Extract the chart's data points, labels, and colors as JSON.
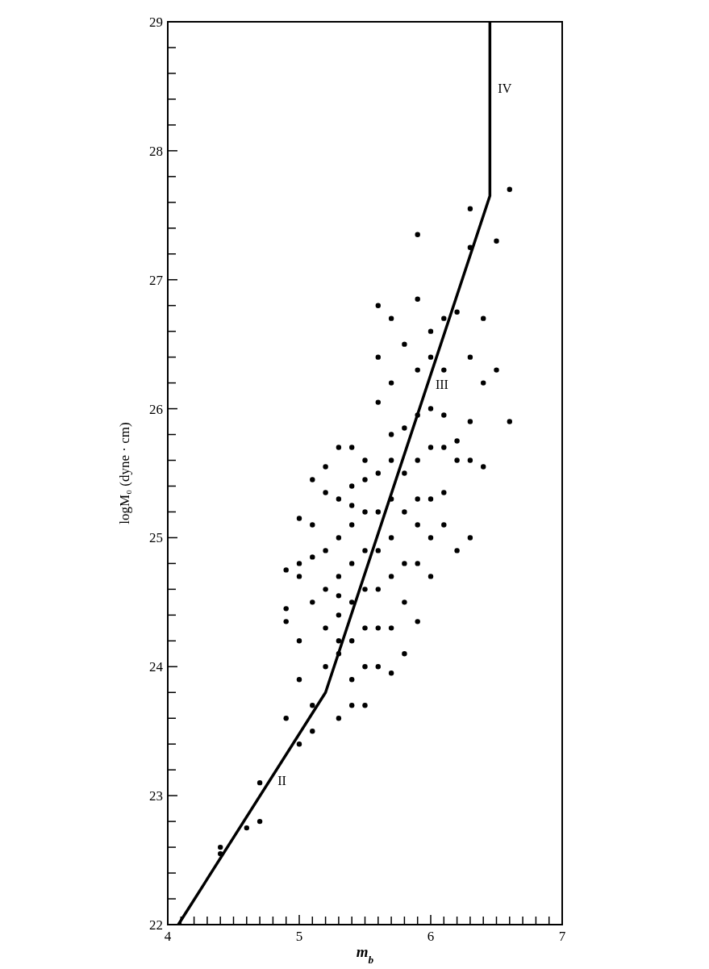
{
  "chart_data": {
    "type": "scatter",
    "xlabel": "m$_{b}$",
    "ylabel": "logM₀ (dyne · cm)",
    "xlim": [
      4,
      7
    ],
    "ylim": [
      22,
      29
    ],
    "xticks": [
      4,
      {
        "value": 4.1,
        "label": null
      },
      {
        "value": 4.2,
        "label": null
      },
      {
        "value": 4.3,
        "label": null
      },
      {
        "value": 4.4,
        "label": null
      },
      {
        "value": 4.5,
        "label": null
      },
      {
        "value": 4.6,
        "label": null
      },
      {
        "value": 4.7,
        "label": null
      },
      {
        "value": 4.8,
        "label": null
      },
      {
        "value": 4.9,
        "label": null
      },
      5,
      {
        "value": 5.1,
        "label": null
      },
      {
        "value": 5.2,
        "label": null
      },
      {
        "value": 5.3,
        "label": null
      },
      {
        "value": 5.4,
        "label": null
      },
      {
        "value": 5.5,
        "label": null
      },
      {
        "value": 5.6,
        "label": null
      },
      {
        "value": 5.7,
        "label": null
      },
      {
        "value": 5.8,
        "label": null
      },
      {
        "value": 5.9,
        "label": null
      },
      6,
      {
        "value": 6.1,
        "label": null
      },
      {
        "value": 6.2,
        "label": null
      },
      {
        "value": 6.3,
        "label": null
      },
      {
        "value": 6.4,
        "label": null
      },
      {
        "value": 6.5,
        "label": null
      },
      {
        "value": 6.6,
        "label": null
      },
      {
        "value": 6.7,
        "label": null
      },
      {
        "value": 6.8,
        "label": null
      },
      {
        "value": 6.9,
        "label": null
      },
      7
    ],
    "yticks": [
      22,
      {
        "value": 22.2,
        "label": null
      },
      {
        "value": 22.4,
        "label": null
      },
      {
        "value": 22.6,
        "label": null
      },
      {
        "value": 22.8,
        "label": null
      },
      23,
      {
        "value": 23.2,
        "label": null
      },
      {
        "value": 23.4,
        "label": null
      },
      {
        "value": 23.6,
        "label": null
      },
      {
        "value": 23.8,
        "label": null
      },
      24,
      {
        "value": 24.2,
        "label": null
      },
      {
        "value": 24.4,
        "label": null
      },
      {
        "value": 24.6,
        "label": null
      },
      {
        "value": 24.8,
        "label": null
      },
      25,
      {
        "value": 25.2,
        "label": null
      },
      {
        "value": 25.4,
        "label": null
      },
      {
        "value": 25.6,
        "label": null
      },
      {
        "value": 25.8,
        "label": null
      },
      26,
      {
        "value": 26.2,
        "label": null
      },
      {
        "value": 26.4,
        "label": null
      },
      {
        "value": 26.6,
        "label": null
      },
      {
        "value": 26.8,
        "label": null
      },
      27,
      {
        "value": 27.2,
        "label": null
      },
      {
        "value": 27.4,
        "label": null
      },
      {
        "value": 27.6,
        "label": null
      },
      {
        "value": 27.8,
        "label": null
      },
      28,
      {
        "value": 28.2,
        "label": null
      },
      {
        "value": 28.4,
        "label": null
      },
      {
        "value": 28.6,
        "label": null
      },
      {
        "value": 28.8,
        "label": null
      },
      29
    ],
    "grid": false,
    "marker": "circle",
    "annotations": [
      "II",
      "III",
      "IV"
    ],
    "series": [
      {
        "color": "#000000",
        "x": [
          4.4,
          4.4,
          4.6,
          4.7,
          4.7,
          4.9,
          5.0,
          5.0,
          5.1,
          5.1,
          4.9,
          4.9,
          4.9,
          5.0,
          5.0,
          5.0,
          5.0,
          5.1,
          5.1,
          5.1,
          5.1,
          5.2,
          5.2,
          5.2,
          5.2,
          5.2,
          5.2,
          5.3,
          5.3,
          5.3,
          5.3,
          5.3,
          5.3,
          5.3,
          5.3,
          5.3,
          5.4,
          5.4,
          5.4,
          5.4,
          5.4,
          5.4,
          5.4,
          5.4,
          5.4,
          5.5,
          5.5,
          5.5,
          5.5,
          5.5,
          5.5,
          5.5,
          5.5,
          5.6,
          5.6,
          5.6,
          5.6,
          5.6,
          5.6,
          5.6,
          5.6,
          5.6,
          5.7,
          5.7,
          5.7,
          5.7,
          5.7,
          5.7,
          5.7,
          5.7,
          5.7,
          5.8,
          5.8,
          5.8,
          5.8,
          5.8,
          5.8,
          5.8,
          5.9,
          5.9,
          5.9,
          5.9,
          5.9,
          5.9,
          5.9,
          5.9,
          5.9,
          6.0,
          6.0,
          6.0,
          6.0,
          6.0,
          6.0,
          6.0,
          6.1,
          6.1,
          6.1,
          6.1,
          6.1,
          6.1,
          6.2,
          6.2,
          6.2,
          6.2,
          6.3,
          6.3,
          6.3,
          6.3,
          6.3,
          6.3,
          6.4,
          6.4,
          6.4,
          6.5,
          6.5,
          6.6,
          6.6
        ],
        "values": [
          22.55,
          22.6,
          22.75,
          22.8,
          23.1,
          23.6,
          23.4,
          23.9,
          23.5,
          23.7,
          24.35,
          24.45,
          24.75,
          24.2,
          24.7,
          25.15,
          24.8,
          24.5,
          24.85,
          25.1,
          25.45,
          24.0,
          24.3,
          24.6,
          24.9,
          25.55,
          25.35,
          23.6,
          24.1,
          24.4,
          24.7,
          25.0,
          25.3,
          25.7,
          24.2,
          24.55,
          23.7,
          23.9,
          24.2,
          24.5,
          24.8,
          25.1,
          25.4,
          25.7,
          25.25,
          23.7,
          24.0,
          24.3,
          24.6,
          24.9,
          25.2,
          25.45,
          25.6,
          24.0,
          24.3,
          24.6,
          24.9,
          25.2,
          25.5,
          26.05,
          26.4,
          26.8,
          23.95,
          24.3,
          24.7,
          25.0,
          25.3,
          25.6,
          25.8,
          26.2,
          26.7,
          24.1,
          24.5,
          24.8,
          25.2,
          25.5,
          25.85,
          26.5,
          24.35,
          24.8,
          25.1,
          25.3,
          25.6,
          25.95,
          26.3,
          26.85,
          27.35,
          24.7,
          25.0,
          25.3,
          25.7,
          26.0,
          26.4,
          26.6,
          25.1,
          25.35,
          25.7,
          25.95,
          26.3,
          26.7,
          24.9,
          25.6,
          25.75,
          26.75,
          25.0,
          25.6,
          25.9,
          26.4,
          27.25,
          27.55,
          25.55,
          26.2,
          26.7,
          26.3,
          27.3,
          25.9,
          27.7
        ]
      },
      {
        "type": "line",
        "color": "#000000",
        "marker": "none",
        "x": [
          4.08,
          5.2,
          6.45,
          6.45
        ],
        "values": [
          22,
          23.8,
          27.65,
          29
        ]
      }
    ]
  }
}
